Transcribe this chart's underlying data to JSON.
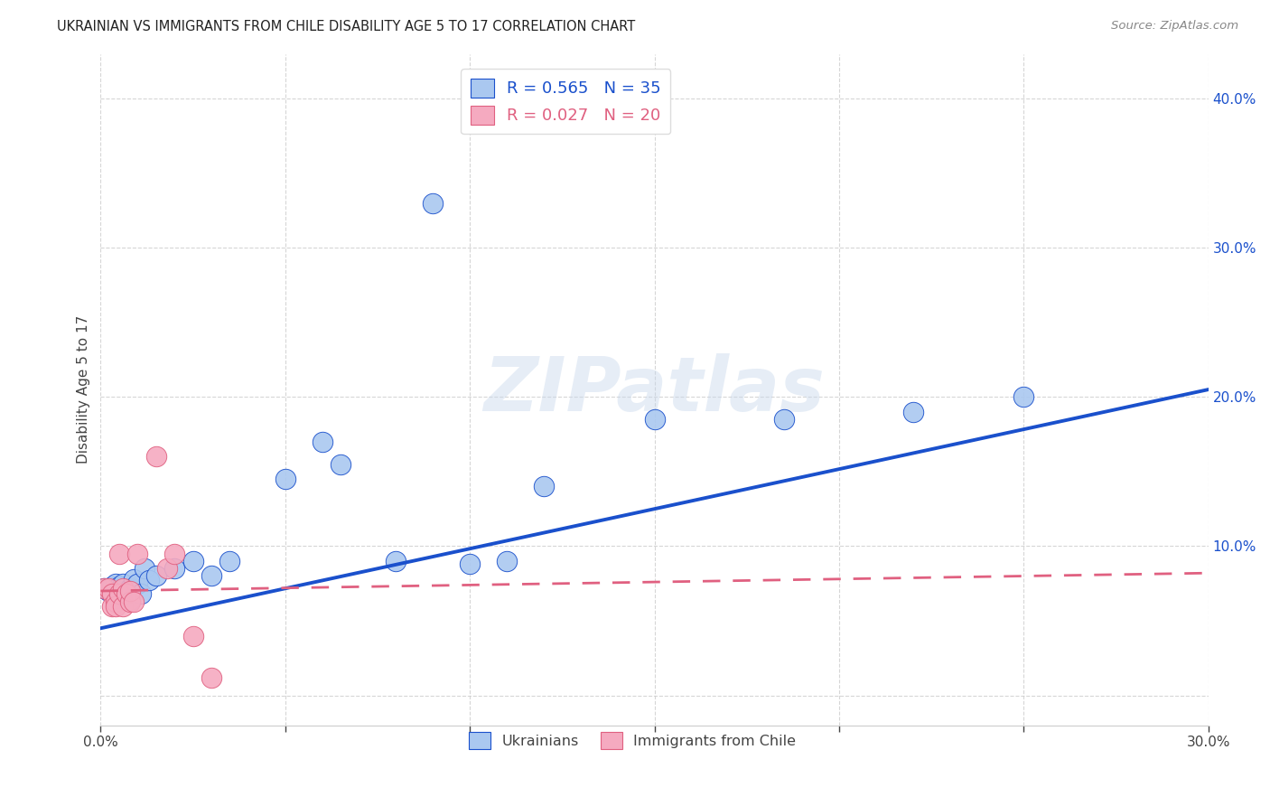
{
  "title": "UKRAINIAN VS IMMIGRANTS FROM CHILE DISABILITY AGE 5 TO 17 CORRELATION CHART",
  "source": "Source: ZipAtlas.com",
  "ylabel": "Disability Age 5 to 17",
  "xlim": [
    0.0,
    0.3
  ],
  "ylim": [
    -0.02,
    0.43
  ],
  "yticks": [
    0.0,
    0.1,
    0.2,
    0.3,
    0.4
  ],
  "xticks": [
    0.0,
    0.05,
    0.1,
    0.15,
    0.2,
    0.25,
    0.3
  ],
  "background_color": "#ffffff",
  "ukrainian_color": "#aac8f0",
  "chile_color": "#f5aac0",
  "trendline_ukraine_color": "#1a50cc",
  "trendline_chile_color": "#e06080",
  "R_ukraine": 0.565,
  "N_ukraine": 35,
  "R_chile": 0.027,
  "N_chile": 20,
  "ukrainian_x": [
    0.001,
    0.002,
    0.003,
    0.003,
    0.004,
    0.004,
    0.005,
    0.005,
    0.006,
    0.006,
    0.007,
    0.008,
    0.008,
    0.009,
    0.01,
    0.011,
    0.012,
    0.013,
    0.015,
    0.02,
    0.025,
    0.03,
    0.035,
    0.05,
    0.06,
    0.065,
    0.08,
    0.09,
    0.1,
    0.11,
    0.12,
    0.15,
    0.185,
    0.22,
    0.25
  ],
  "ukrainian_y": [
    0.072,
    0.07,
    0.068,
    0.073,
    0.065,
    0.075,
    0.07,
    0.073,
    0.067,
    0.075,
    0.068,
    0.072,
    0.064,
    0.078,
    0.075,
    0.068,
    0.085,
    0.077,
    0.08,
    0.085,
    0.09,
    0.08,
    0.09,
    0.145,
    0.17,
    0.155,
    0.09,
    0.33,
    0.088,
    0.09,
    0.14,
    0.185,
    0.185,
    0.19,
    0.2
  ],
  "chile_x": [
    0.001,
    0.002,
    0.003,
    0.003,
    0.004,
    0.004,
    0.005,
    0.005,
    0.006,
    0.006,
    0.007,
    0.008,
    0.008,
    0.009,
    0.01,
    0.015,
    0.018,
    0.02,
    0.025,
    0.03
  ],
  "chile_y": [
    0.072,
    0.072,
    0.068,
    0.06,
    0.063,
    0.06,
    0.095,
    0.068,
    0.06,
    0.072,
    0.068,
    0.063,
    0.07,
    0.063,
    0.095,
    0.16,
    0.085,
    0.095,
    0.04,
    0.012
  ]
}
